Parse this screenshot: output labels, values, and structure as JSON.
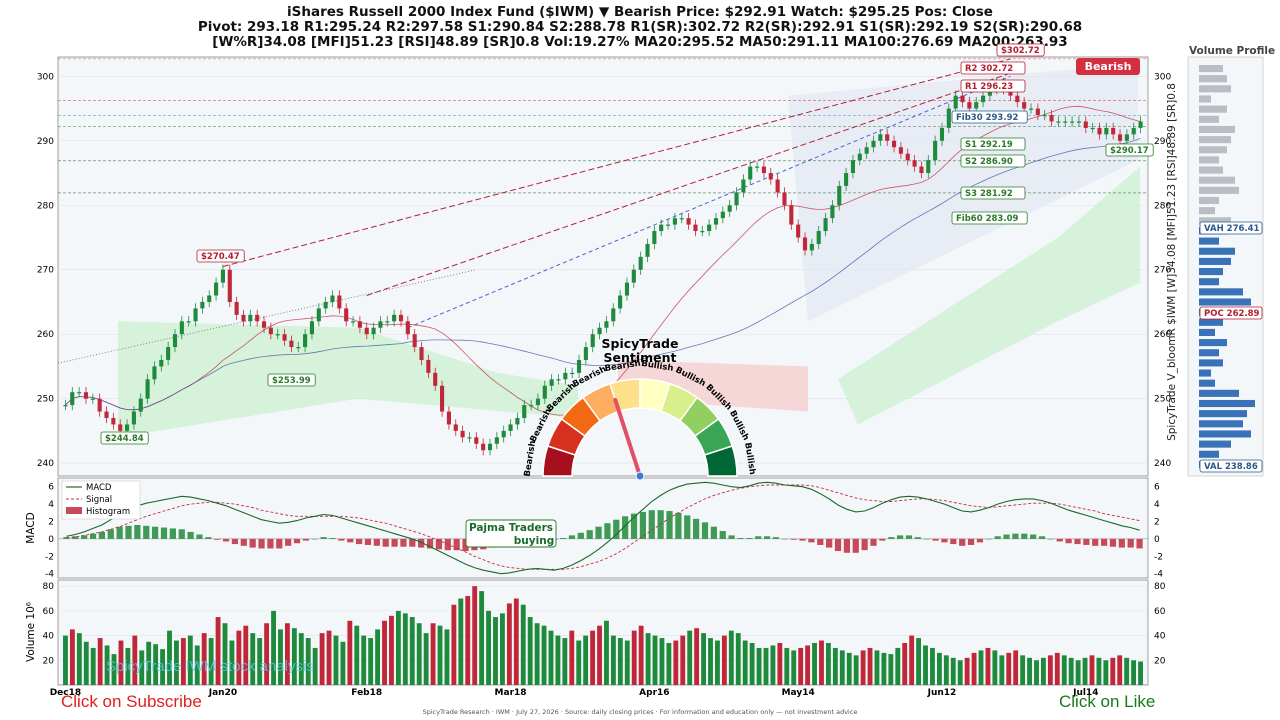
{
  "header": {
    "line1": "iShares Russell 2000 Index Fund  ($IWM)   ▼ Bearish   Price: $292.91   Watch: $295.25   Pos: Close",
    "line2": "Pivot: 293.18  R1:295.24  R2:297.58  S1:290.84  S2:288.78  R1(SR):302.72  R2(SR):292.91  S1(SR):292.19  S2(SR):290.68",
    "line3": "[W%R]34.08  [MFI]51.23  [RSI]48.89  [SR]0.8  Vol:19.27%  MA20:295.52  MA50:291.11  MA100:276.69  MA200:263.93"
  },
  "side_label": "SpicyTrade V_bloomR $IWM [W]34.08 [MFI]51.23 [RSI]48.89 [SR]0.8",
  "volume_profile_title": "Volume Profile",
  "vp_labels": {
    "vah": "VAH 276.41",
    "poc": "POC 262.89",
    "val": "VAL 238.86"
  },
  "colors": {
    "up": "#1e8a3c",
    "down": "#c0283a",
    "bearish_badge": "#d32f3f",
    "accent": "#e0506a"
  },
  "badge": "Bearish",
  "annotations": {
    "hi1": "$270.47",
    "lo1": "$253.99",
    "lo2": "$244.84",
    "top": "$302.72",
    "last": "$290.17",
    "r2": "R2  302.72",
    "r1": "R1  296.23",
    "fib30": "Fib30 293.92",
    "s1": "S1  292.19",
    "s2": "S2  286.90",
    "s3": "S3  281.92",
    "fib60": "Fib60 283.09"
  },
  "gauge": {
    "title": "SpicyTrade",
    "subtitle": "Sentiment",
    "labels": [
      "Bearish",
      "Bearish",
      "Bearish",
      "Bearish",
      "Bearish",
      "Bullish",
      "Bullish",
      "Bullish",
      "Bullish",
      "Bullish"
    ],
    "colors": [
      "#a50f1e",
      "#d7301f",
      "#f16913",
      "#fdae61",
      "#fee08b",
      "#ffffbf",
      "#d9ef8b",
      "#91cf60",
      "#3aa655",
      "#006837"
    ],
    "needle_fraction": 0.4
  },
  "macd_note": {
    "line1": "Pajma Traders",
    "line2": "buying"
  },
  "macd_legend": [
    "MACD",
    "Signal",
    "Histogram"
  ],
  "axis_labels": {
    "macd": "MACD",
    "volume": "Volume  10⁶"
  },
  "watermark": "SpicyTrade IWM stock analysis",
  "footer": "SpicyTrade Research   ·   IWM   ·   July 27, 2026   ·   Source: daily closing prices   ·   For information and education only — not investment advice",
  "cta": {
    "subscribe": "Click on Subscribe",
    "like": "Click on Like"
  },
  "chart_data": {
    "type": "candlestick",
    "x_ticks": [
      "Dec18",
      "Jan20",
      "Feb18",
      "Mar18",
      "Apr16",
      "May14",
      "Jun12",
      "Jul14"
    ],
    "x_tick_index": [
      0,
      23,
      44,
      65,
      86,
      107,
      128,
      149
    ],
    "price_ticks": [
      240,
      250,
      260,
      270,
      280,
      290,
      300
    ],
    "ylim": [
      238,
      303
    ],
    "closes": [
      249,
      251,
      251,
      250,
      250,
      248,
      247,
      246,
      245,
      246,
      248,
      250,
      253,
      255,
      256,
      258,
      260,
      262,
      262,
      264,
      265,
      266,
      268,
      270,
      265,
      263,
      262,
      263,
      262,
      261,
      260,
      260,
      259,
      258,
      258,
      260,
      262,
      264,
      265,
      266,
      264,
      262,
      262,
      261,
      260,
      261,
      262,
      262,
      263,
      262,
      260,
      258,
      256,
      254,
      252,
      248,
      246,
      245,
      244,
      244,
      243,
      242,
      243,
      244,
      245,
      246,
      247,
      249,
      249,
      250,
      252,
      253,
      253,
      254,
      254,
      256,
      258,
      260,
      261,
      262,
      264,
      266,
      268,
      270,
      272,
      274,
      276,
      277,
      277,
      278,
      278,
      277,
      276,
      276,
      277,
      278,
      279,
      280,
      282,
      284,
      286,
      286,
      285,
      284,
      282,
      280,
      277,
      275,
      273,
      274,
      276,
      278,
      280,
      283,
      285,
      287,
      288,
      289,
      290,
      291,
      290,
      289,
      288,
      287,
      286,
      285,
      287,
      290,
      292,
      295,
      297,
      296,
      295,
      296,
      297,
      298,
      299,
      298,
      297,
      296,
      295,
      295,
      294,
      294,
      293,
      293,
      293,
      293,
      293,
      292,
      292,
      291,
      292,
      291,
      290,
      291,
      292,
      293
    ],
    "macd": {
      "ylim": [
        -4.5,
        7
      ],
      "ticks": [
        -4,
        -2,
        0,
        2,
        4,
        6
      ],
      "macd": [
        0.3,
        0.5,
        0.8,
        1.2,
        1.6,
        2.2,
        2.8,
        3.3,
        3.8,
        4.1,
        4.3,
        4.5,
        4.7,
        4.9,
        4.8,
        4.6,
        4.4,
        4.1,
        3.8,
        3.4,
        3.0,
        2.6,
        2.2,
        2.0,
        1.8,
        1.9,
        2.1,
        2.4,
        2.6,
        2.8,
        2.7,
        2.4,
        2.1,
        1.8,
        1.5,
        1.2,
        0.9,
        0.6,
        0.3,
        0.0,
        -0.4,
        -0.9,
        -1.4,
        -1.9,
        -2.4,
        -2.9,
        -3.3,
        -3.6,
        -3.8,
        -4.0,
        -3.9,
        -3.7,
        -3.5,
        -3.4,
        -3.5,
        -3.6,
        -3.4,
        -3.0,
        -2.5,
        -1.9,
        -1.2,
        -0.4,
        0.5,
        1.5,
        2.5,
        3.4,
        4.3,
        5.0,
        5.6,
        6.0,
        6.3,
        6.4,
        6.5,
        6.4,
        6.2,
        6.0,
        5.9,
        6.1,
        6.4,
        6.5,
        6.4,
        6.2,
        6.1,
        6.0,
        5.7,
        5.2,
        4.6,
        3.9,
        3.4,
        3.1,
        3.2,
        3.6,
        4.1,
        4.5,
        4.8,
        4.9,
        4.8,
        4.6,
        4.3,
        4.0,
        3.6,
        3.2,
        3.1,
        3.3,
        3.6,
        4.0,
        4.3,
        4.5,
        4.6,
        4.6,
        4.4,
        4.1,
        3.7,
        3.3,
        3.0,
        2.7,
        2.4,
        2.1,
        1.8,
        1.5,
        1.3,
        1.0
      ],
      "signal": [
        0.1,
        0.2,
        0.4,
        0.6,
        0.8,
        1.1,
        1.4,
        1.8,
        2.2,
        2.6,
        2.9,
        3.2,
        3.5,
        3.8,
        4.0,
        4.1,
        4.2,
        4.2,
        4.1,
        4.0,
        3.8,
        3.6,
        3.3,
        3.1,
        2.9,
        2.7,
        2.6,
        2.6,
        2.6,
        2.6,
        2.6,
        2.6,
        2.5,
        2.4,
        2.2,
        2.0,
        1.8,
        1.5,
        1.2,
        0.9,
        0.6,
        0.2,
        -0.2,
        -0.6,
        -1.1,
        -1.5,
        -2.0,
        -2.4,
        -2.8,
        -3.1,
        -3.3,
        -3.4,
        -3.5,
        -3.5,
        -3.5,
        -3.5,
        -3.5,
        -3.4,
        -3.2,
        -2.9,
        -2.6,
        -2.2,
        -1.7,
        -1.1,
        -0.4,
        0.3,
        1.0,
        1.7,
        2.4,
        3.0,
        3.6,
        4.1,
        4.6,
        5.0,
        5.3,
        5.6,
        5.8,
        6.0,
        6.1,
        6.2,
        6.2,
        6.2,
        6.2,
        6.2,
        6.1,
        5.9,
        5.6,
        5.3,
        5.0,
        4.7,
        4.5,
        4.4,
        4.3,
        4.3,
        4.4,
        4.5,
        4.6,
        4.6,
        4.5,
        4.4,
        4.2,
        4.0,
        3.8,
        3.7,
        3.6,
        3.7,
        3.8,
        3.9,
        4.0,
        4.1,
        4.1,
        4.1,
        4.0,
        3.8,
        3.6,
        3.4,
        3.2,
        2.9,
        2.7,
        2.5,
        2.3,
        2.1
      ]
    },
    "volume": {
      "ylim": [
        0,
        85
      ],
      "ticks": [
        20,
        40,
        60,
        80
      ],
      "values": [
        40,
        45,
        42,
        35,
        30,
        38,
        32,
        25,
        36,
        30,
        40,
        28,
        35,
        33,
        29,
        44,
        36,
        38,
        40,
        32,
        42,
        38,
        55,
        50,
        36,
        44,
        48,
        42,
        38,
        50,
        60,
        45,
        50,
        46,
        42,
        38,
        30,
        42,
        44,
        40,
        35,
        52,
        48,
        40,
        38,
        45,
        52,
        56,
        60,
        58,
        55,
        50,
        42,
        50,
        48,
        45,
        65,
        70,
        72,
        80,
        76,
        60,
        55,
        58,
        66,
        70,
        65,
        55,
        50,
        48,
        44,
        40,
        38,
        44,
        36,
        40,
        44,
        48,
        52,
        40,
        38,
        36,
        44,
        48,
        42,
        40,
        38,
        34,
        36,
        40,
        44,
        46,
        42,
        38,
        36,
        40,
        44,
        42,
        36,
        34,
        30,
        30,
        32,
        34,
        30,
        28,
        30,
        32,
        34,
        36,
        34,
        30,
        28,
        26,
        24,
        28,
        30,
        28,
        26,
        25,
        30,
        34,
        40,
        38,
        32,
        30,
        26,
        24,
        22,
        20,
        22,
        26,
        28,
        30,
        28,
        24,
        26,
        28,
        24,
        22,
        20,
        22,
        24,
        26,
        24,
        22,
        20,
        22,
        24,
        22,
        20,
        22,
        24,
        22,
        20,
        19
      ],
      "scale_note": "millions"
    },
    "volume_profile": [
      6,
      7,
      8,
      3,
      7,
      5,
      9,
      8,
      7,
      5,
      6,
      9,
      10,
      5,
      4,
      8,
      7,
      5,
      9,
      8,
      6,
      5,
      11,
      13,
      12,
      6,
      4,
      7,
      5,
      6,
      3,
      4,
      10,
      14,
      12,
      11,
      13,
      8,
      5,
      4
    ],
    "vp_colors_note": "upper bars grey, lower bars blue"
  }
}
